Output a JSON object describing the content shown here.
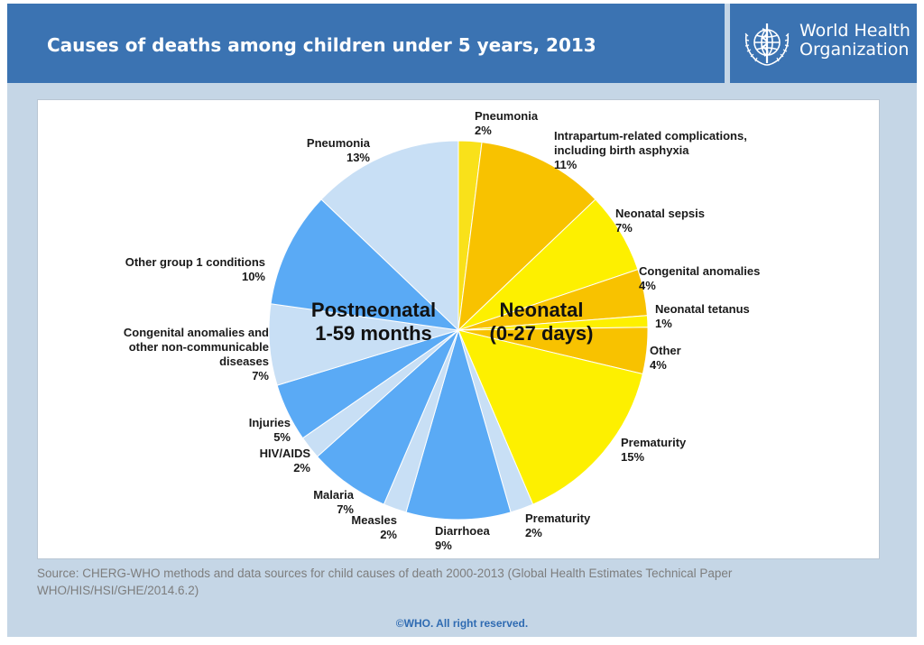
{
  "header": {
    "title": "Causes of deaths among children under 5 years, 2013",
    "logo_line1": "World Health",
    "logo_line2": "Organization"
  },
  "chart_data": {
    "type": "pie",
    "title": "Causes of deaths among children under 5 years, 2013",
    "groups": [
      {
        "name_line1": "Neonatal",
        "name_line2": "(0-27 days)"
      },
      {
        "name_line1": "Postneonatal",
        "name_line2": "1-59 months"
      }
    ],
    "slices": [
      {
        "label": [
          "Pneumonia"
        ],
        "value": 2,
        "pct": "2%",
        "group": "Neonatal",
        "color": "#f9e11a"
      },
      {
        "label": [
          "Intrapartum-related complications,",
          "including birth asphyxia"
        ],
        "value": 11,
        "pct": "11%",
        "group": "Neonatal",
        "color": "#f8c200"
      },
      {
        "label": [
          "Neonatal sepsis"
        ],
        "value": 7,
        "pct": "7%",
        "group": "Neonatal",
        "color": "#fdf000"
      },
      {
        "label": [
          "Congenital anomalies"
        ],
        "value": 4,
        "pct": "4%",
        "group": "Neonatal",
        "color": "#f8c200"
      },
      {
        "label": [
          "Neonatal tetanus"
        ],
        "value": 1,
        "pct": "1%",
        "group": "Neonatal",
        "color": "#fdf000"
      },
      {
        "label": [
          "Other"
        ],
        "value": 4,
        "pct": "4%",
        "group": "Neonatal",
        "color": "#f8c200"
      },
      {
        "label": [
          "Prematurity"
        ],
        "value": 15,
        "pct": "15%",
        "group": "Neonatal",
        "color": "#fdf000"
      },
      {
        "label": [
          "Prematurity"
        ],
        "value": 2,
        "pct": "2%",
        "group": "Postneonatal",
        "color": "#c8dff5"
      },
      {
        "label": [
          "Diarrhoea"
        ],
        "value": 9,
        "pct": "9%",
        "group": "Postneonatal",
        "color": "#5aaaf5"
      },
      {
        "label": [
          "Measles"
        ],
        "value": 2,
        "pct": "2%",
        "group": "Postneonatal",
        "color": "#c8dff5"
      },
      {
        "label": [
          "Malaria"
        ],
        "value": 7,
        "pct": "7%",
        "group": "Postneonatal",
        "color": "#5aaaf5"
      },
      {
        "label": [
          "HIV/AIDS"
        ],
        "value": 2,
        "pct": "2%",
        "group": "Postneonatal",
        "color": "#c8dff5"
      },
      {
        "label": [
          "Injuries"
        ],
        "value": 5,
        "pct": "5%",
        "group": "Postneonatal",
        "color": "#5aaaf5"
      },
      {
        "label": [
          "Congenital anomalies and",
          "other non-communicable",
          "diseases"
        ],
        "value": 7,
        "pct": "7%",
        "group": "Postneonatal",
        "color": "#c8dff5"
      },
      {
        "label": [
          "Other group 1 conditions"
        ],
        "value": 10,
        "pct": "10%",
        "group": "Postneonatal",
        "color": "#5aaaf5"
      },
      {
        "label": [
          "Pneumonia"
        ],
        "value": 13,
        "pct": "13%",
        "group": "Postneonatal",
        "color": "#c8dff5"
      }
    ],
    "legend": "none"
  },
  "source": {
    "line1": "Source: CHERG-WHO methods and data sources for child causes of death 2000-2013 (Global Health Estimates Technical Paper",
    "line2": "WHO/HIS/HSI/GHE/2014.6.2)"
  },
  "footer": {
    "copyright": "©WHO. All right reserved."
  }
}
